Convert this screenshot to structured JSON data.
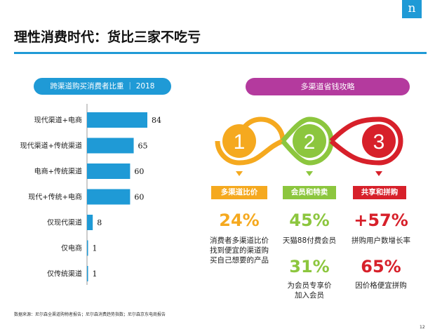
{
  "logo_text": "n",
  "title": "理性消费时代：货比三家不吃亏",
  "chart_pill": "跨渠道购买消费者比重 ｜ 2018",
  "chart_data": {
    "type": "bar",
    "orientation": "horizontal",
    "categories": [
      "现代渠道+电商",
      "现代渠道+传统渠道",
      "电商+传统渠道",
      "现代+传统+电商",
      "仅现代渠道",
      "仅电商",
      "仅传统渠道"
    ],
    "values": [
      84,
      65,
      60,
      60,
      8,
      1,
      1
    ],
    "color": "#1f9ad6",
    "grid": false
  },
  "panel_title": "多渠道省钱攻略",
  "steps": [
    {
      "num": "1",
      "color": "#f5a91f",
      "label": "多渠道比价",
      "stat1": "24%",
      "desc1_l1": "消费者多渠道比价",
      "desc1_l2": "找到便宜的渠道购",
      "desc1_l3": "买自己想要的产品"
    },
    {
      "num": "2",
      "color": "#8cc63e",
      "label": "会员和特卖",
      "stat1": "45%",
      "desc1_l1": "天猫88付费会员",
      "stat2": "31%",
      "desc2_l1": "为会员专享价",
      "desc2_l2": "加入会员"
    },
    {
      "num": "3",
      "color": "#d7202a",
      "label": "共享和拼购",
      "stat1": "+57%",
      "desc1_l1": "拼购用户数增长率",
      "stat2": "65%",
      "desc2_l1": "因价格便宜拼购"
    }
  ],
  "source": "数据来源：尼尔森全渠道购物者报告；尼尔森消费趋势指数；尼尔森京东电商报告",
  "page_number": "12"
}
